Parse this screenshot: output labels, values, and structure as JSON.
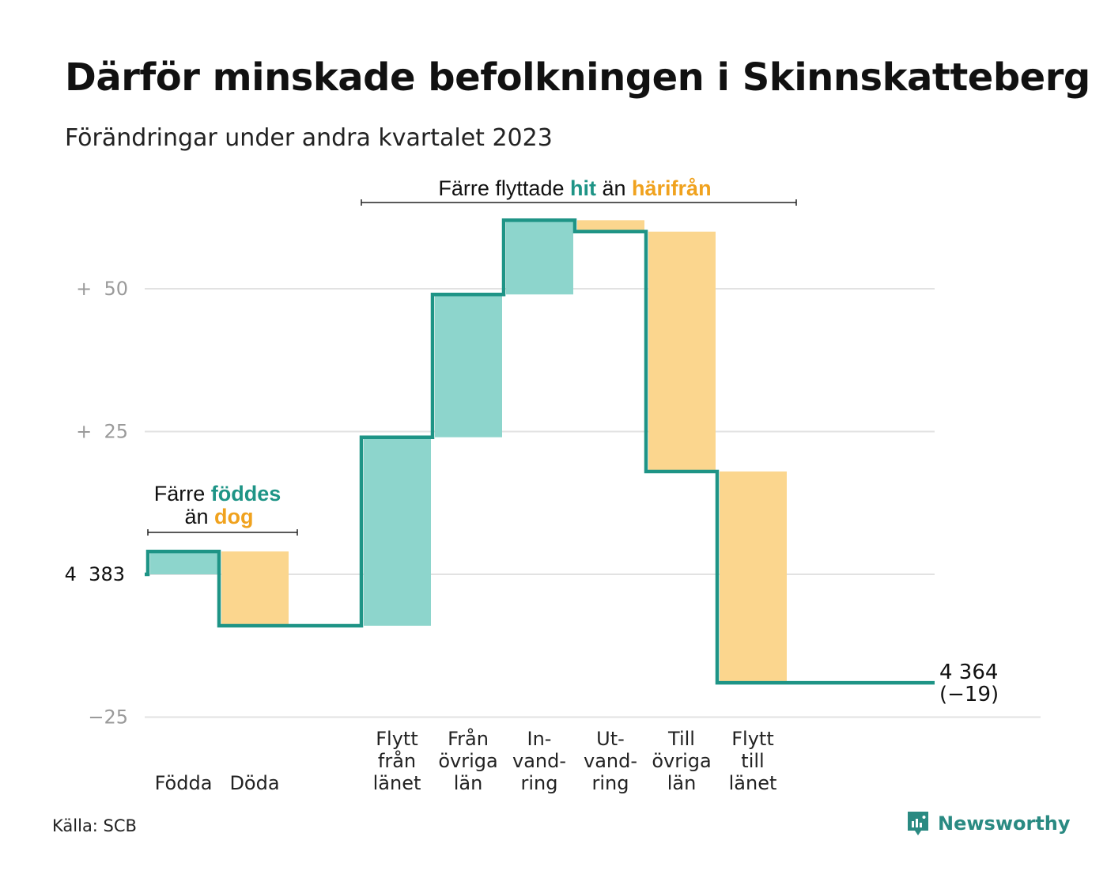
{
  "title": "Därför minskade befolkningen i Skinnskatteberg",
  "subtitle": "Förändringar under andra kvartalet 2023",
  "source": "Källa: SCB",
  "brand": {
    "name": "Newsworthy",
    "icon": "newsworthy-logo-icon"
  },
  "colors": {
    "inflow": "#8dd5cc",
    "outflow": "#fbd68e",
    "line": "#1e9486",
    "inflow_text": "#1e9486",
    "outflow_text": "#f0a21e",
    "grid": "#e2e2e2",
    "axis_text": "#9a9a9a"
  },
  "chart_data": {
    "type": "waterfall",
    "start": {
      "label": "4  383",
      "value": 4383
    },
    "end": {
      "label": "4 364",
      "change_label": "(−19)",
      "value": 4364
    },
    "y_ticks": [
      {
        "label": "+  50",
        "value": 50
      },
      {
        "label": "+  25",
        "value": 25
      },
      {
        "label": "4  383",
        "value": 0
      },
      {
        "label": "−25",
        "value": -25
      }
    ],
    "ylim": [
      -25,
      61
    ],
    "steps": [
      {
        "label_lines": [
          "Födda"
        ],
        "change": 4,
        "kind": "in"
      },
      {
        "label_lines": [
          "Döda"
        ],
        "change": -13,
        "kind": "out"
      },
      {
        "label_lines": [],
        "change": 0,
        "kind": "none"
      },
      {
        "label_lines": [
          "Flytt",
          "från",
          "länet"
        ],
        "change": 33,
        "kind": "in"
      },
      {
        "label_lines": [
          "Från",
          "övriga",
          "län"
        ],
        "change": 25,
        "kind": "in"
      },
      {
        "label_lines": [
          "In-",
          "vand-",
          "ring"
        ],
        "change": 13,
        "kind": "in"
      },
      {
        "label_lines": [
          "Ut-",
          "vand-",
          "ring"
        ],
        "change": -2,
        "kind": "out"
      },
      {
        "label_lines": [
          "Till",
          "övriga",
          "län"
        ],
        "change": -42,
        "kind": "out"
      },
      {
        "label_lines": [
          "Flytt",
          "till",
          "länet"
        ],
        "change": -37,
        "kind": "out"
      },
      {
        "label_lines": [],
        "change": 0,
        "kind": "none"
      }
    ],
    "annotations": [
      {
        "id": "births",
        "parts": [
          {
            "text": "Färre",
            "style": "plain"
          },
          {
            "text": "föddes",
            "style": "inflow"
          },
          {
            "text": "än",
            "style": "plain"
          },
          {
            "text": "dog",
            "style": "outflow"
          }
        ]
      },
      {
        "id": "migration",
        "parts": [
          {
            "text": "Färre flyttade",
            "style": "plain"
          },
          {
            "text": "hit",
            "style": "inflow"
          },
          {
            "text": "än",
            "style": "plain"
          },
          {
            "text": "härifrån",
            "style": "outflow"
          }
        ]
      }
    ]
  }
}
